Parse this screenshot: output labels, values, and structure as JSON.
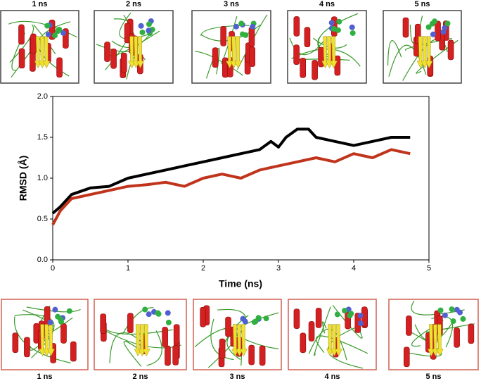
{
  "top_panels": [
    "1 ns",
    "2 ns",
    "3 ns",
    "4 ns",
    "5 ns"
  ],
  "bottom_panels": [
    "1 ns",
    "2 ns",
    "3 ns",
    "4 ns",
    "5 ns"
  ],
  "chart_data": {
    "type": "line",
    "xlabel": "Time (ns)",
    "ylabel": "RMSD (Å)",
    "xlim": [
      0,
      5
    ],
    "xticks": [
      0,
      1,
      2,
      3,
      4,
      5
    ],
    "ylim": [
      0,
      2
    ],
    "yticks": [
      {
        "value": 0,
        "label": "0.0"
      },
      {
        "value": 0.5,
        "label": "0.5"
      },
      {
        "value": 1,
        "label": "1.0"
      },
      {
        "value": 1.5,
        "label": "1.5"
      },
      {
        "value": 2,
        "label": "2.0"
      }
    ],
    "grid": false,
    "series": [
      {
        "color": "#000000",
        "x": [
          0,
          0.1,
          0.25,
          0.5,
          0.75,
          1.0,
          1.25,
          1.5,
          1.75,
          2.0,
          2.25,
          2.5,
          2.75,
          2.9,
          3.0,
          3.1,
          3.25,
          3.4,
          3.5,
          3.75,
          4.0,
          4.25,
          4.5,
          4.75
        ],
        "values": [
          0.57,
          0.65,
          0.8,
          0.88,
          0.9,
          1.0,
          1.05,
          1.1,
          1.15,
          1.2,
          1.25,
          1.3,
          1.35,
          1.45,
          1.38,
          1.5,
          1.6,
          1.6,
          1.5,
          1.45,
          1.4,
          1.45,
          1.5,
          1.5
        ]
      },
      {
        "color": "#c0341c",
        "x": [
          0,
          0.1,
          0.25,
          0.5,
          0.75,
          1.0,
          1.25,
          1.5,
          1.75,
          2.0,
          2.25,
          2.5,
          2.75,
          3.0,
          3.25,
          3.5,
          3.75,
          4.0,
          4.25,
          4.5,
          4.75
        ],
        "values": [
          0.43,
          0.6,
          0.75,
          0.8,
          0.85,
          0.9,
          0.92,
          0.95,
          0.9,
          1.0,
          1.05,
          1.0,
          1.1,
          1.15,
          1.2,
          1.25,
          1.2,
          1.3,
          1.25,
          1.35,
          1.3
        ]
      }
    ]
  }
}
